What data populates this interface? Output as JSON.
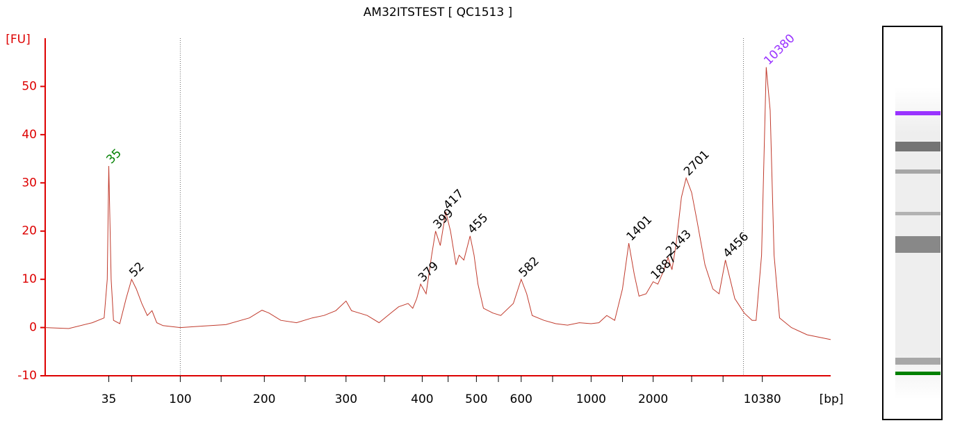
{
  "chart_data": {
    "type": "line",
    "title": "AM32ITSTEST  [ QC1513 ]",
    "ylabel": "[FU]",
    "xlabel": "[bp]",
    "ylim": [
      -10,
      60
    ],
    "yticks": [
      -10,
      0,
      10,
      20,
      30,
      40,
      50
    ],
    "xlim": [
      0,
      100
    ],
    "xticks": [
      {
        "value": 8.1,
        "label": "35"
      },
      {
        "value": 17.2,
        "label": "100"
      },
      {
        "value": 27.9,
        "label": "200"
      },
      {
        "value": 38.3,
        "label": "300"
      },
      {
        "value": 48.0,
        "label": "400"
      },
      {
        "value": 54.9,
        "label": "500"
      },
      {
        "value": 60.6,
        "label": "600"
      },
      {
        "value": 69.5,
        "label": "1000"
      },
      {
        "value": 77.4,
        "label": "2000"
      },
      {
        "value": 91.3,
        "label": "10380"
      }
    ],
    "xminorticks": [
      11.0,
      22.4,
      33.1,
      43.2,
      51.3,
      57.7,
      64.6,
      73.5,
      82.3,
      86.3
    ],
    "markers": [
      17.2,
      88.9
    ],
    "color": "#c0392b",
    "axis_color": "#dd0000",
    "x": [
      0,
      3,
      6,
      7.5,
      7.9,
      8.1,
      8.4,
      8.7,
      9.5,
      10.3,
      11.0,
      11.6,
      12.3,
      13.0,
      13.6,
      14.2,
      15,
      17.2,
      20,
      23,
      26,
      27.6,
      28.5,
      30,
      32,
      34,
      35.5,
      37,
      38.3,
      39,
      41,
      42.5,
      44,
      45,
      46.2,
      46.8,
      47.3,
      47.8,
      48.5,
      49.2,
      49.7,
      50.3,
      51,
      51.6,
      52.3,
      52.7,
      53.3,
      54.1,
      54.6,
      55.1,
      55.8,
      57,
      58,
      59.6,
      60.6,
      61.3,
      62,
      63.5,
      65,
      66.5,
      68,
      69.5,
      70.5,
      71.5,
      72.5,
      73.5,
      74.3,
      75,
      75.6,
      76.5,
      77.4,
      78,
      78.8,
      79.3,
      79.8,
      80.3,
      81,
      81.6,
      82.3,
      83,
      84,
      85,
      85.8,
      86.6,
      87.2,
      87.8,
      89,
      90,
      90.5,
      91.2,
      91.8,
      92.3,
      92.8,
      93.5,
      95,
      97,
      100
    ],
    "y": [
      0,
      -0.2,
      1,
      2,
      10,
      33.5,
      10,
      1.5,
      0.8,
      6,
      10,
      8,
      5,
      2.5,
      3.5,
      1,
      0.4,
      0,
      0.3,
      0.6,
      2,
      3.6,
      3,
      1.5,
      1,
      2,
      2.5,
      3.5,
      5.5,
      3.5,
      2.5,
      1,
      3,
      4.3,
      5,
      4,
      6,
      9,
      7,
      15,
      20,
      17,
      24,
      20,
      13,
      15,
      14,
      19,
      15,
      9,
      4,
      3,
      2.5,
      5,
      10,
      7,
      2.5,
      1.5,
      0.8,
      0.5,
      1,
      0.8,
      1,
      2.5,
      1.5,
      8,
      17.5,
      11,
      6.5,
      7,
      9.5,
      9,
      12,
      14.5,
      12,
      17,
      27,
      31,
      28,
      22,
      13,
      8,
      7,
      14,
      10,
      6,
      3,
      1.5,
      1.5,
      15,
      54,
      45,
      15,
      2,
      0,
      -1.5,
      -2.5
    ],
    "peaks": [
      {
        "label": "35",
        "x": 8.1,
        "y": 33.5,
        "color": "#008000"
      },
      {
        "label": "52",
        "x": 11.0,
        "y": 10,
        "color": "#000000"
      },
      {
        "label": "379",
        "x": 47.8,
        "y": 9,
        "color": "#000000"
      },
      {
        "label": "399",
        "x": 49.7,
        "y": 20,
        "color": "#000000"
      },
      {
        "label": "417",
        "x": 51.0,
        "y": 24,
        "color": "#000000"
      },
      {
        "label": "455",
        "x": 54.1,
        "y": 19,
        "color": "#000000"
      },
      {
        "label": "582",
        "x": 60.6,
        "y": 10,
        "color": "#000000"
      },
      {
        "label": "1401",
        "x": 74.3,
        "y": 17.5,
        "color": "#000000"
      },
      {
        "label": "1887",
        "x": 77.4,
        "y": 9.5,
        "color": "#000000"
      },
      {
        "label": "2143",
        "x": 79.3,
        "y": 14.5,
        "color": "#000000"
      },
      {
        "label": "2701",
        "x": 81.6,
        "y": 31,
        "color": "#000000"
      },
      {
        "label": "4456",
        "x": 86.6,
        "y": 14,
        "color": "#000000"
      },
      {
        "label": "10380",
        "x": 91.8,
        "y": 54,
        "color": "#9933ff"
      }
    ]
  }
}
